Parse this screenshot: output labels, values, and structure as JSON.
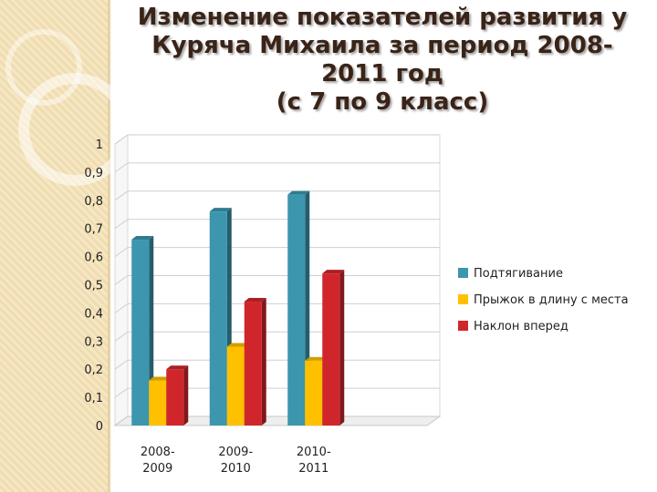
{
  "title_lines": [
    "Изменение  показателей развития у",
    "Куряча Михаила за период 2008-",
    "2011 год",
    "(с 7 по 9 класс)"
  ],
  "chart_data": {
    "type": "bar",
    "categories": [
      [
        "2008-",
        "2009"
      ],
      [
        "2009-",
        "2010"
      ],
      [
        "2010-",
        "2011"
      ],
      [
        "",
        ""
      ]
    ],
    "series": [
      {
        "name": "Подтягивание",
        "values": [
          0.66,
          0.76,
          0.82,
          null
        ],
        "color": "#3c96ae"
      },
      {
        "name": "Прыжок в длину с места",
        "values": [
          0.16,
          0.28,
          0.23,
          null
        ],
        "color": "#ffc000"
      },
      {
        "name": "Наклон вперед",
        "values": [
          0.2,
          0.44,
          0.54,
          null
        ],
        "color": "#d0262b"
      }
    ],
    "ylim": [
      0,
      1
    ],
    "yticks": [
      "0",
      "0,1",
      "0,2",
      "0,3",
      "0,4",
      "0,5",
      "0,6",
      "0,7",
      "0,8",
      "0,9",
      "1"
    ],
    "grid": true,
    "legend_position": "right"
  }
}
